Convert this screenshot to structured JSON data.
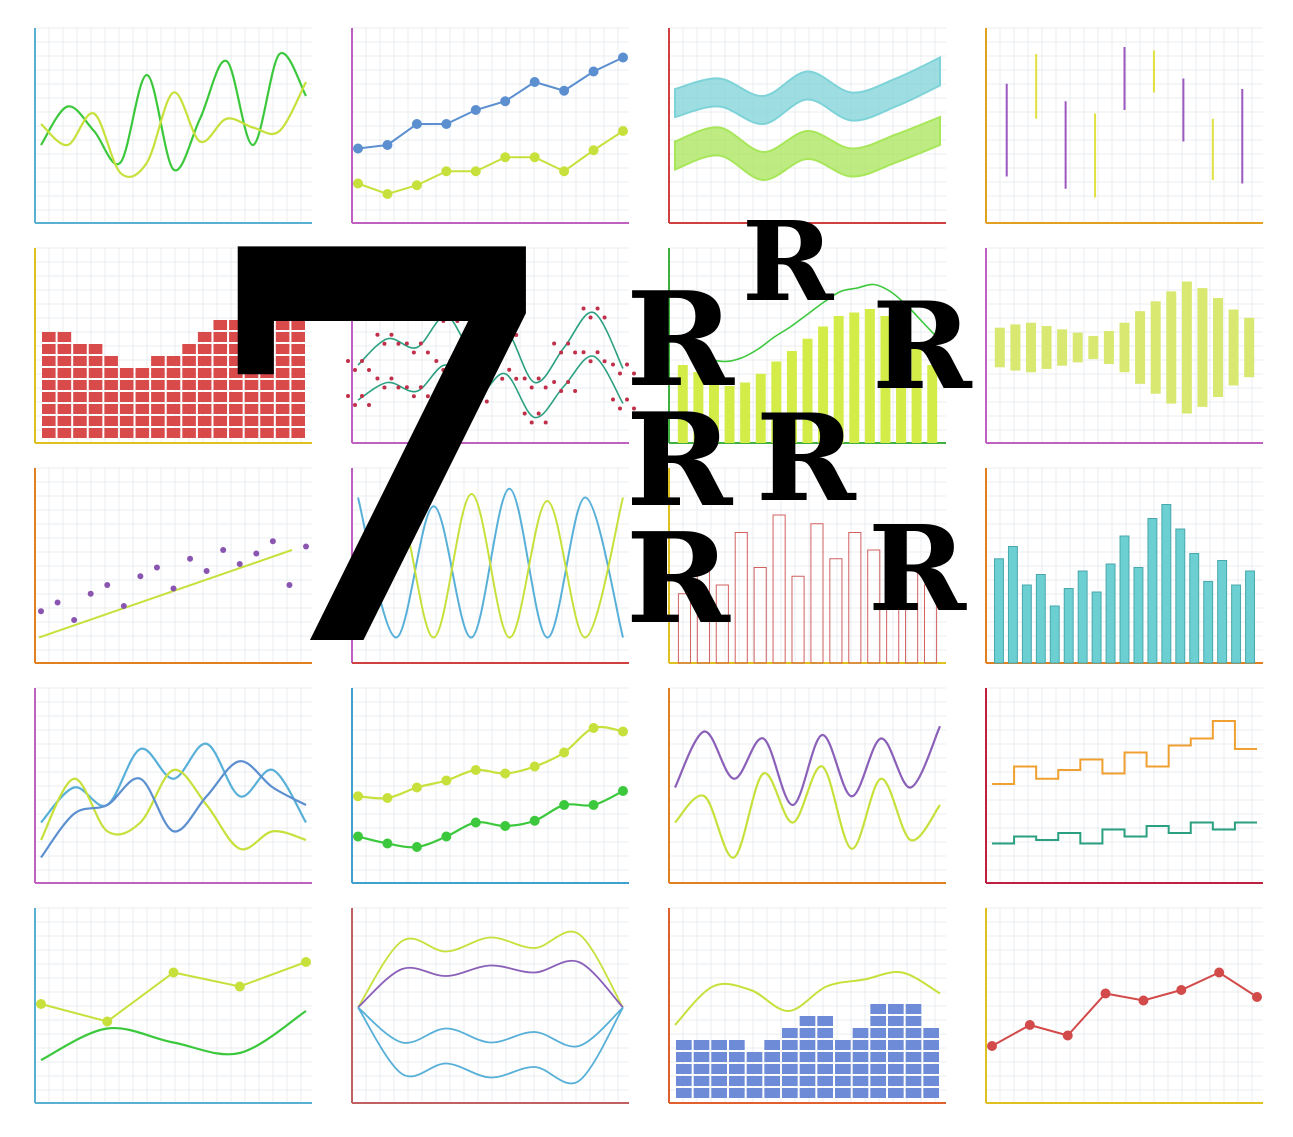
{
  "overlay": {
    "numeral": "7",
    "letters": [
      "R",
      "R",
      "R",
      "R",
      "R",
      "R",
      "R",
      "R"
    ]
  },
  "colors": {
    "grid": "#e9ecef",
    "wave_green": "#3cc83c",
    "wave_yellow": "#c8e03c",
    "line_blue": "#5b8fd0",
    "band_cyan": "#7ed3d8",
    "band_lime": "#a8e65a",
    "candle_purple": "#9b59c0",
    "candle_yellow": "#e0e040",
    "block_red": "#d94b4b",
    "dot_crimson": "#c0304a",
    "bar_lime": "#d4ec48",
    "spread_lime": "#d8e870",
    "scatter_purple": "#8a55b0",
    "bell_blue": "#58b0d8",
    "thin_red": "#d26060",
    "bar_teal": "#6ccfd2",
    "wave_purple": "#8a60b8",
    "step_orange": "#f0a030",
    "step_teal": "#2aa080",
    "block_blue": "#6d8bd6",
    "line_red": "#d24a4a"
  },
  "chart_data": [
    {
      "type": "line",
      "title": "",
      "series": [
        {
          "values": [
            40,
            62,
            48,
            30,
            80,
            26,
            55,
            88,
            40,
            92,
            68
          ]
        },
        {
          "values": [
            52,
            40,
            58,
            24,
            30,
            70,
            42,
            55,
            50,
            48,
            76
          ]
        }
      ]
    },
    {
      "type": "line",
      "title": "",
      "x": [
        1,
        2,
        3,
        4,
        5,
        6,
        7,
        8,
        9,
        10
      ],
      "series": [
        {
          "values": [
            38,
            40,
            52,
            52,
            60,
            65,
            76,
            71,
            82,
            90
          ]
        },
        {
          "values": [
            18,
            12,
            17,
            25,
            25,
            33,
            33,
            25,
            37,
            48
          ]
        }
      ]
    },
    {
      "type": "area",
      "title": "",
      "series": [
        {
          "values": [
            64,
            70,
            60,
            74,
            62,
            70,
            82
          ]
        },
        {
          "values": [
            34,
            42,
            28,
            40,
            30,
            38,
            48
          ]
        }
      ]
    },
    {
      "type": "table",
      "title": "",
      "candles": [
        [
          22,
          45,
          40,
          75
        ],
        [
          55,
          72,
          58,
          92
        ],
        [
          15,
          32,
          28,
          65
        ],
        [
          10,
          48,
          40,
          58
        ],
        [
          60,
          85,
          72,
          96
        ],
        [
          70,
          88,
          78,
          94
        ],
        [
          42,
          66,
          52,
          78
        ],
        [
          20,
          42,
          33,
          55
        ],
        [
          18,
          55,
          46,
          72
        ]
      ]
    },
    {
      "type": "bar",
      "title": "",
      "values": [
        9,
        9,
        8,
        8,
        7,
        6,
        6,
        7,
        7,
        8,
        9,
        10,
        10,
        11,
        12,
        12,
        12
      ]
    },
    {
      "type": "scatter",
      "title": "",
      "series": [
        {
          "values": [
            40,
            55,
            50,
            68,
            45,
            60,
            30,
            50,
            70,
            38
          ]
        },
        {
          "values": [
            20,
            30,
            25,
            40,
            22,
            35,
            10,
            28,
            45,
            18
          ]
        }
      ]
    },
    {
      "type": "bar",
      "title": "",
      "values": [
        40,
        36,
        30,
        28,
        30,
        35,
        42,
        48,
        55,
        62,
        68,
        70,
        72,
        68,
        60,
        50,
        40
      ]
    },
    {
      "type": "bar",
      "title": "",
      "values": [
        24,
        28,
        30,
        26,
        22,
        18,
        14,
        20,
        30,
        44,
        56,
        68,
        80,
        72,
        60,
        46,
        36
      ]
    },
    {
      "type": "scatter",
      "title": "",
      "series": [
        {
          "values": [
            25,
            30,
            20,
            35,
            40,
            28,
            45,
            50,
            38,
            55,
            48,
            60,
            52,
            58,
            65,
            40,
            62
          ]
        }
      ]
    },
    {
      "type": "line",
      "title": "",
      "series": [
        {
          "values": [
            90,
            10,
            85,
            10,
            95,
            10,
            90,
            10
          ]
        },
        {
          "values": [
            10,
            88,
            10,
            92,
            10,
            88,
            10,
            90
          ]
        }
      ]
    },
    {
      "type": "bar",
      "title": "",
      "values": [
        5,
        30,
        10,
        40,
        20,
        50,
        15,
        45,
        25,
        40,
        30,
        35,
        20,
        10
      ]
    },
    {
      "type": "bar",
      "title": "",
      "values": [
        55,
        62,
        40,
        46,
        28,
        38,
        48,
        36,
        52,
        68,
        50,
        78,
        86,
        72,
        58,
        42,
        54,
        40,
        48
      ]
    },
    {
      "type": "line",
      "title": "",
      "series": [
        {
          "values": [
            30,
            50,
            40,
            72,
            55,
            75,
            45,
            60,
            30
          ]
        },
        {
          "values": [
            20,
            55,
            25,
            30,
            60,
            40,
            15,
            25,
            20
          ]
        },
        {
          "values": [
            10,
            35,
            40,
            55,
            25,
            45,
            65,
            50,
            40
          ]
        }
      ]
    },
    {
      "type": "line",
      "title": "",
      "x": [
        1,
        2,
        3,
        4,
        5,
        6,
        7,
        8,
        9,
        10
      ],
      "series": [
        {
          "values": [
            45,
            44,
            50,
            54,
            60,
            58,
            62,
            70,
            84,
            82
          ]
        },
        {
          "values": [
            22,
            18,
            16,
            22,
            30,
            28,
            31,
            40,
            40,
            48
          ]
        }
      ]
    },
    {
      "type": "line",
      "title": "",
      "series": [
        {
          "values": [
            50,
            82,
            55,
            78,
            40,
            80,
            45,
            78,
            50,
            85
          ]
        },
        {
          "values": [
            30,
            45,
            10,
            58,
            30,
            62,
            15,
            55,
            20,
            40
          ]
        }
      ]
    },
    {
      "type": "line",
      "title": "",
      "series": [
        {
          "values": [
            52,
            62,
            55,
            60,
            66,
            58,
            70,
            62,
            74,
            78,
            88,
            72
          ]
        },
        {
          "values": [
            18,
            22,
            20,
            24,
            18,
            26,
            22,
            28,
            24,
            30,
            26,
            30
          ]
        }
      ]
    },
    {
      "type": "line",
      "title": "",
      "x": [
        1,
        2,
        3,
        4,
        5
      ],
      "series": [
        {
          "values": [
            52,
            42,
            70,
            62,
            76
          ]
        },
        {
          "values": [
            20,
            38,
            30,
            24,
            48
          ]
        }
      ]
    },
    {
      "type": "line",
      "title": "",
      "series": [
        {
          "values": [
            80,
            88,
            82,
            90,
            84,
            92,
            80
          ]
        },
        {
          "values": [
            65,
            72,
            68,
            74,
            70,
            76,
            66
          ]
        },
        {
          "values": [
            35,
            30,
            38,
            30,
            36,
            28,
            34
          ]
        },
        {
          "values": [
            20,
            12,
            18,
            10,
            16,
            8,
            18
          ]
        }
      ]
    },
    {
      "type": "bar",
      "title": "",
      "values": [
        28,
        32,
        30,
        26,
        22,
        28,
        35,
        42,
        40,
        30,
        38,
        48,
        52,
        46,
        38
      ]
    },
    {
      "type": "line",
      "title": "",
      "x": [
        1,
        2,
        3,
        4,
        5,
        6,
        7,
        8
      ],
      "series": [
        {
          "values": [
            28,
            40,
            34,
            58,
            54,
            60,
            70,
            56
          ]
        }
      ]
    }
  ]
}
